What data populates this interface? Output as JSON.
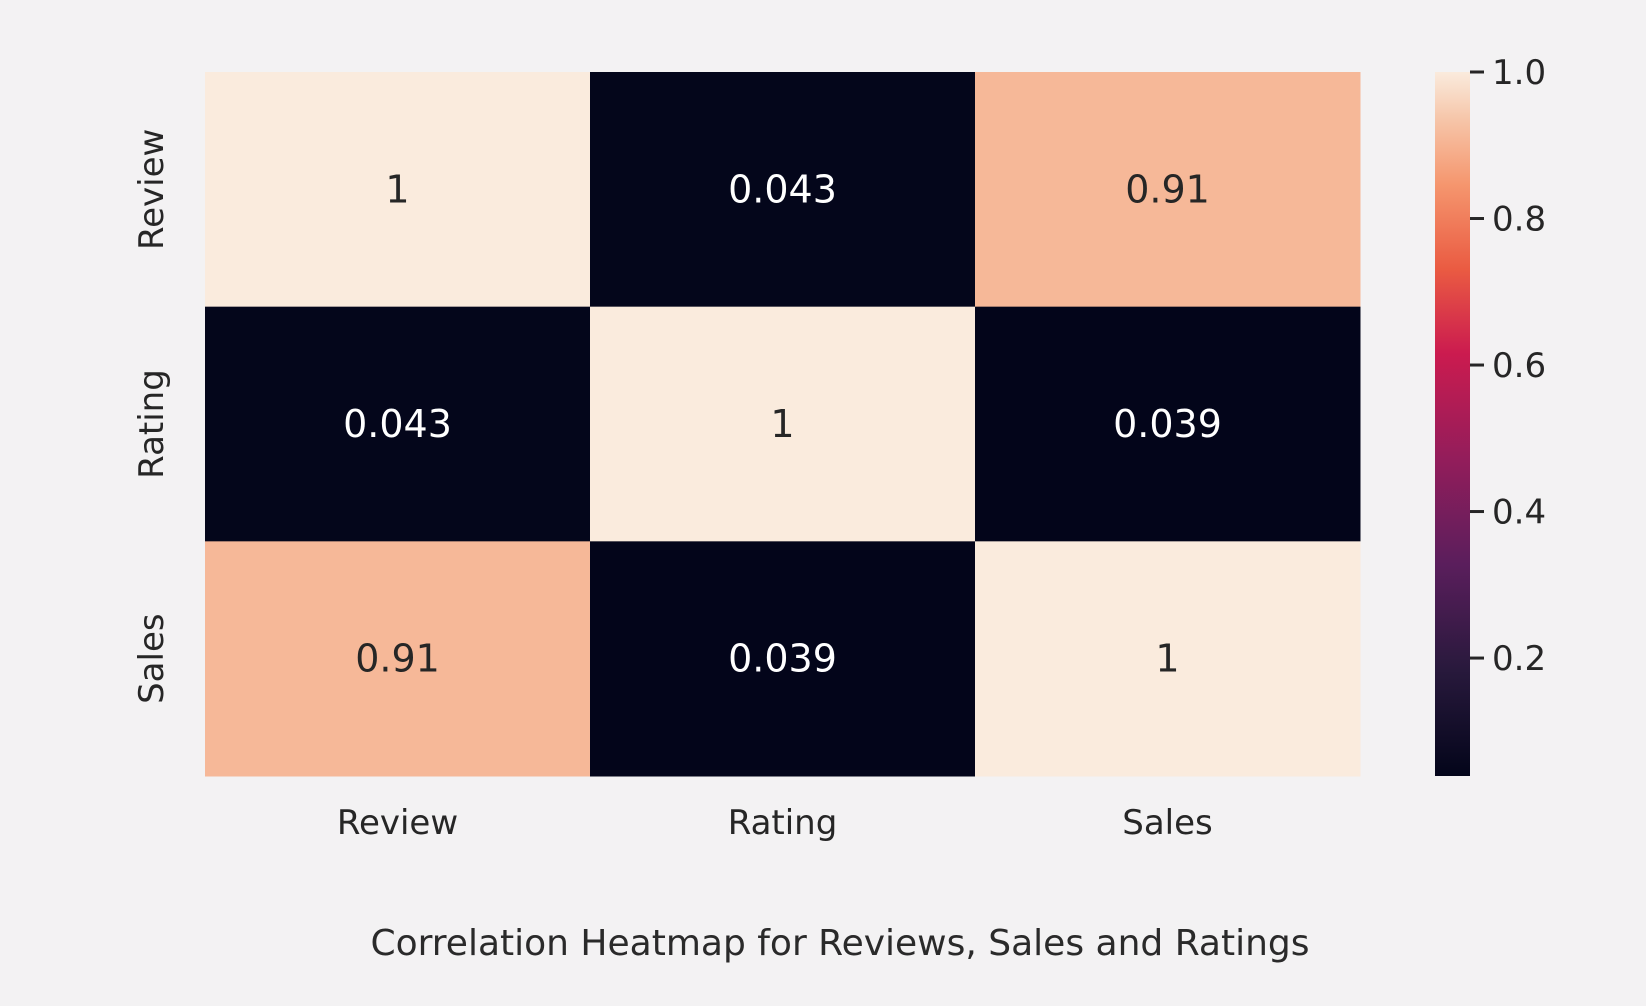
{
  "chart_data": {
    "type": "heatmap",
    "title": "",
    "caption": "Correlation Heatmap for Reviews, Sales and Ratings",
    "x_labels": [
      "Review",
      "Rating",
      "Sales"
    ],
    "y_labels": [
      "Review",
      "Rating",
      "Sales"
    ],
    "values": [
      [
        1.0,
        0.043,
        0.91
      ],
      [
        0.043,
        1.0,
        0.039
      ],
      [
        0.91,
        0.039,
        1.0
      ]
    ],
    "annotations": [
      [
        "1",
        "0.043",
        "0.91"
      ],
      [
        "0.043",
        "1",
        "0.039"
      ],
      [
        "0.91",
        "0.039",
        "1"
      ]
    ],
    "colorbar": {
      "colormap": "rocket",
      "range": [
        0.039,
        1.0
      ],
      "ticks": [
        0.2,
        0.4,
        0.6,
        0.8,
        1.0
      ],
      "tick_labels": [
        "0.2",
        "0.4",
        "0.6",
        "0.8",
        "1.0"
      ]
    },
    "grid": false,
    "legend": "colorbar-right"
  },
  "colors": {
    "background": "#f3f2f3",
    "text_dark": "#262626",
    "text_light": "#ffffff"
  }
}
